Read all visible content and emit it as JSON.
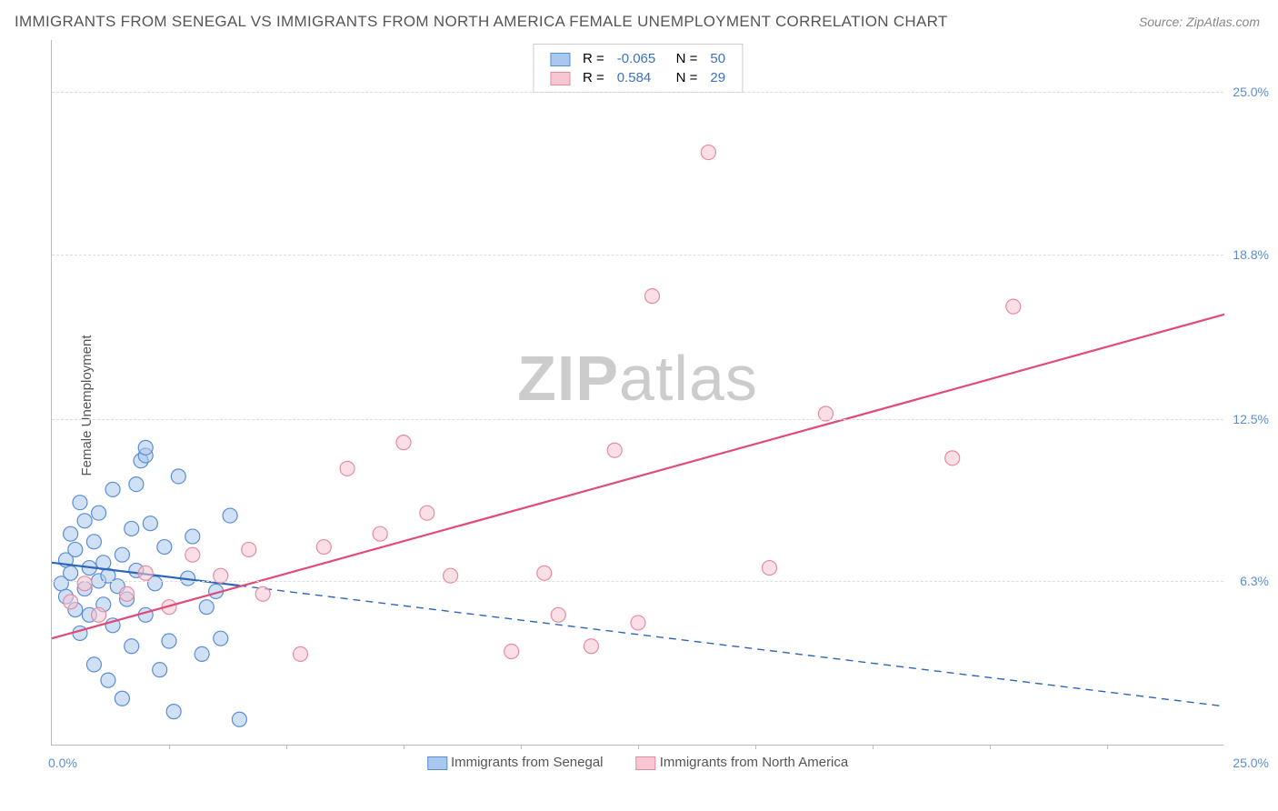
{
  "title": "IMMIGRANTS FROM SENEGAL VS IMMIGRANTS FROM NORTH AMERICA FEMALE UNEMPLOYMENT CORRELATION CHART",
  "source": "Source: ZipAtlas.com",
  "ylabel": "Female Unemployment",
  "watermark_zip": "ZIP",
  "watermark_atlas": "atlas",
  "xlim": [
    0,
    25
  ],
  "ylim": [
    0,
    27
  ],
  "yticks": [
    {
      "v": 6.3,
      "label": "6.3%"
    },
    {
      "v": 12.5,
      "label": "12.5%"
    },
    {
      "v": 18.8,
      "label": "18.8%"
    },
    {
      "v": 25.0,
      "label": "25.0%"
    }
  ],
  "xtick_min": "0.0%",
  "xtick_max": "25.0%",
  "xminor_step": 2.5,
  "colors": {
    "blue_fill": "#a9c8ed",
    "blue_stroke": "#5b8dd6",
    "blue_line": "#2d66b8",
    "pink_fill": "#f6c6d2",
    "pink_stroke": "#e48ba2",
    "pink_line": "#e04b77",
    "grid": "#dddddd",
    "axis": "#bbbbbb",
    "text": "#555555",
    "tick_text": "#5b8dd6",
    "stat_text": "#3b72c4"
  },
  "marker_radius": 8,
  "series": [
    {
      "name": "Immigrants from Senegal",
      "color_key": "blue",
      "r": -0.065,
      "n": 50,
      "trend": {
        "x1": 0,
        "y1": 7.0,
        "x2": 25,
        "y2": 1.5,
        "solid_until_x": 4.0
      },
      "points": [
        [
          0.2,
          6.2
        ],
        [
          0.3,
          7.1
        ],
        [
          0.3,
          5.7
        ],
        [
          0.4,
          6.6
        ],
        [
          0.4,
          8.1
        ],
        [
          0.5,
          5.2
        ],
        [
          0.5,
          7.5
        ],
        [
          0.6,
          9.3
        ],
        [
          0.6,
          4.3
        ],
        [
          0.7,
          6.0
        ],
        [
          0.7,
          8.6
        ],
        [
          0.8,
          6.8
        ],
        [
          0.8,
          5.0
        ],
        [
          0.9,
          7.8
        ],
        [
          0.9,
          3.1
        ],
        [
          1.0,
          6.3
        ],
        [
          1.0,
          8.9
        ],
        [
          1.1,
          5.4
        ],
        [
          1.1,
          7.0
        ],
        [
          1.2,
          2.5
        ],
        [
          1.2,
          6.5
        ],
        [
          1.3,
          4.6
        ],
        [
          1.3,
          9.8
        ],
        [
          1.4,
          6.1
        ],
        [
          1.5,
          1.8
        ],
        [
          1.5,
          7.3
        ],
        [
          1.6,
          5.6
        ],
        [
          1.7,
          8.3
        ],
        [
          1.7,
          3.8
        ],
        [
          1.8,
          6.7
        ],
        [
          1.9,
          10.9
        ],
        [
          2.0,
          11.1
        ],
        [
          2.0,
          5.0
        ],
        [
          2.1,
          8.5
        ],
        [
          2.2,
          6.2
        ],
        [
          2.3,
          2.9
        ],
        [
          2.4,
          7.6
        ],
        [
          2.5,
          4.0
        ],
        [
          2.6,
          1.3
        ],
        [
          2.7,
          10.3
        ],
        [
          2.9,
          6.4
        ],
        [
          3.0,
          8.0
        ],
        [
          3.2,
          3.5
        ],
        [
          3.3,
          5.3
        ],
        [
          3.5,
          5.9
        ],
        [
          3.8,
          8.8
        ],
        [
          3.6,
          4.1
        ],
        [
          4.0,
          1.0
        ],
        [
          2.0,
          11.4
        ],
        [
          1.8,
          10.0
        ]
      ]
    },
    {
      "name": "Immigrants from North America",
      "color_key": "pink",
      "r": 0.584,
      "n": 29,
      "trend": {
        "x1": 0,
        "y1": 4.1,
        "x2": 25,
        "y2": 16.5,
        "solid_until_x": 25
      },
      "points": [
        [
          0.4,
          5.5
        ],
        [
          0.7,
          6.2
        ],
        [
          1.0,
          5.0
        ],
        [
          1.6,
          5.8
        ],
        [
          2.0,
          6.6
        ],
        [
          2.5,
          5.3
        ],
        [
          3.0,
          7.3
        ],
        [
          3.6,
          6.5
        ],
        [
          4.2,
          7.5
        ],
        [
          4.5,
          5.8
        ],
        [
          5.3,
          3.5
        ],
        [
          5.8,
          7.6
        ],
        [
          6.3,
          10.6
        ],
        [
          7.0,
          8.1
        ],
        [
          7.5,
          11.6
        ],
        [
          8.0,
          8.9
        ],
        [
          8.5,
          6.5
        ],
        [
          9.8,
          3.6
        ],
        [
          10.5,
          6.6
        ],
        [
          10.8,
          5.0
        ],
        [
          11.5,
          3.8
        ],
        [
          12.0,
          11.3
        ],
        [
          12.5,
          4.7
        ],
        [
          12.8,
          17.2
        ],
        [
          14.0,
          22.7
        ],
        [
          15.3,
          6.8
        ],
        [
          16.5,
          12.7
        ],
        [
          19.2,
          11.0
        ],
        [
          20.5,
          16.8
        ]
      ]
    }
  ],
  "legend_items": [
    {
      "label": "Immigrants from Senegal",
      "color_key": "blue"
    },
    {
      "label": "Immigrants from North America",
      "color_key": "pink"
    }
  ]
}
